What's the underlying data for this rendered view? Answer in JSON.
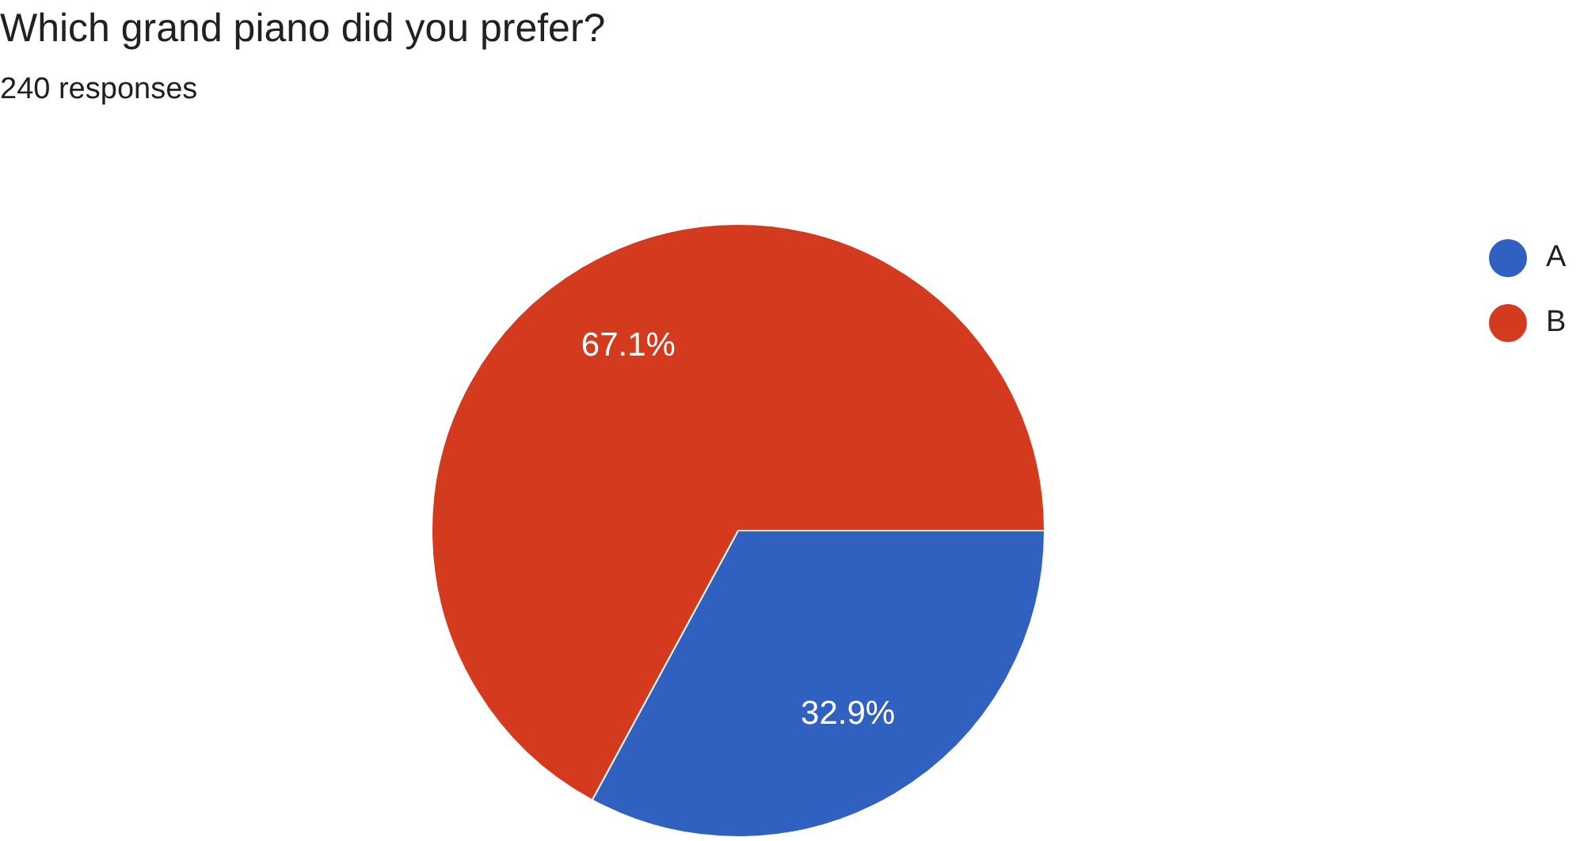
{
  "chart_data": {
    "type": "pie",
    "title": "Which grand piano did you prefer?",
    "subtitle": "240 responses",
    "categories": [
      "A",
      "B"
    ],
    "values": [
      32.9,
      67.1
    ],
    "value_labels": [
      "32.9%",
      "67.1%"
    ],
    "colors": [
      "#3061c1",
      "#d33a1e"
    ],
    "legend": "top right"
  }
}
